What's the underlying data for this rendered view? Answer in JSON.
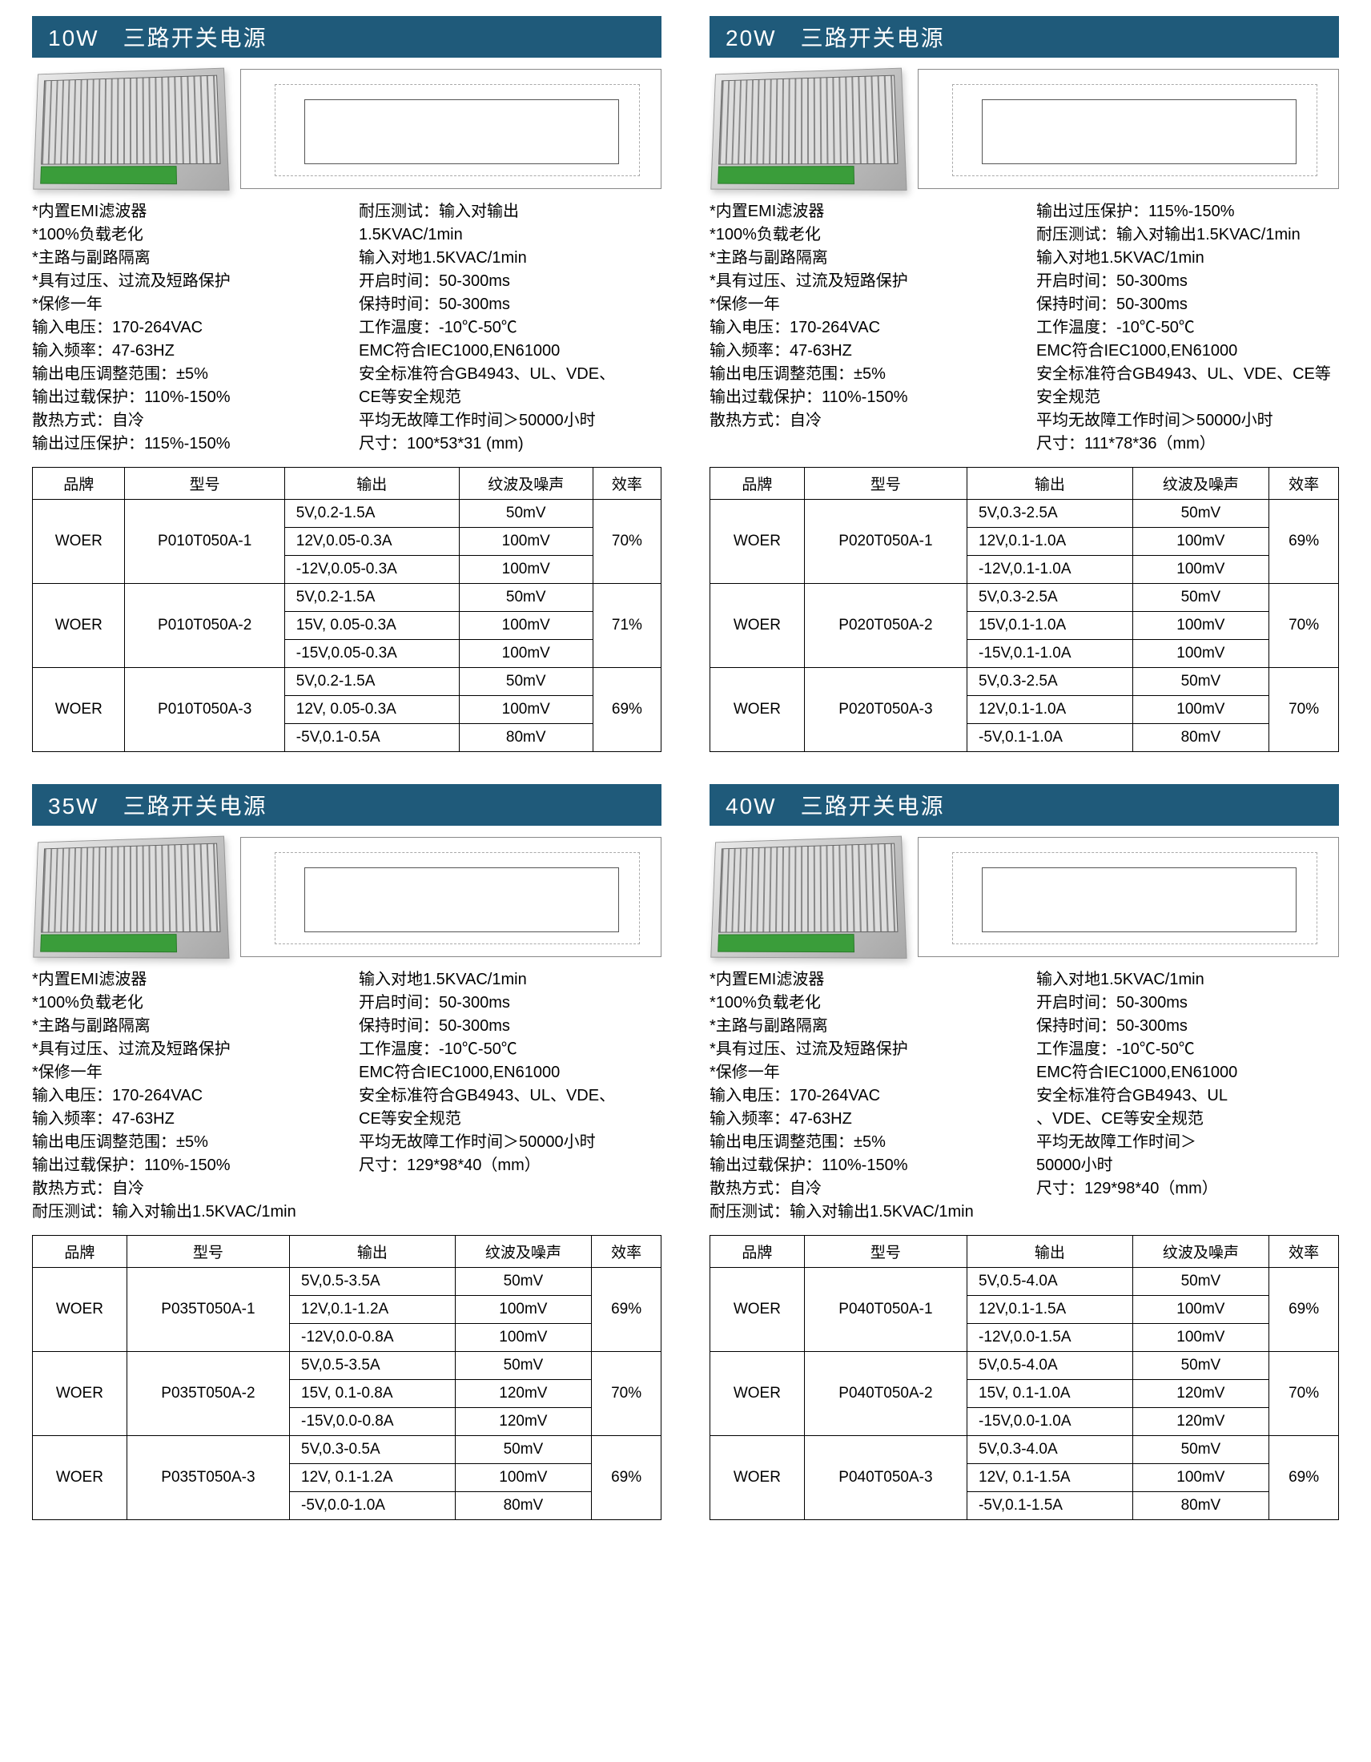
{
  "colors": {
    "titlebar_bg": "#1f5a7a",
    "titlebar_fg": "#ffffff",
    "border": "#000000"
  },
  "blocks": [
    {
      "title": "10W　三路开关电源",
      "specs_left": [
        "*内置EMI滤波器",
        "*100%负载老化",
        "*主路与副路隔离",
        "*具有过压、过流及短路保护",
        "*保修一年",
        "输入电压：170-264VAC",
        "输入频率：47-63HZ",
        "输出电压调整范围：±5%",
        "输出过载保护：110%-150%",
        "散热方式：自冷",
        "输出过压保护：115%-150%"
      ],
      "specs_right": [
        "耐压测试：输入对输出",
        "1.5KVAC/1min",
        "输入对地1.5KVAC/1min",
        "开启时间：50-300ms",
        "保持时间：50-300ms",
        "工作温度：-10℃-50℃",
        "EMC符合IEC1000,EN61000",
        "安全标准符合GB4943、UL、VDE、",
        "CE等安全规范",
        "平均无故障工作时间＞50000小时",
        "尺寸：100*53*31 (mm)"
      ],
      "table": {
        "headers": [
          "品牌",
          "型号",
          "输出",
          "纹波及噪声",
          "效率"
        ],
        "groups": [
          {
            "brand": "WOER",
            "model": "P010T050A-1",
            "eff": "70%",
            "rows": [
              {
                "out": "5V,0.2-1.5A",
                "rn": "50mV"
              },
              {
                "out": "12V,0.05-0.3A",
                "rn": "100mV"
              },
              {
                "out": "-12V,0.05-0.3A",
                "rn": "100mV"
              }
            ]
          },
          {
            "brand": "WOER",
            "model": "P010T050A-2",
            "eff": "71%",
            "rows": [
              {
                "out": "5V,0.2-1.5A",
                "rn": "50mV"
              },
              {
                "out": "15V, 0.05-0.3A",
                "rn": "100mV"
              },
              {
                "out": "-15V,0.05-0.3A",
                "rn": "100mV"
              }
            ]
          },
          {
            "brand": "WOER",
            "model": "P010T050A-3",
            "eff": "69%",
            "rows": [
              {
                "out": "5V,0.2-1.5A",
                "rn": "50mV"
              },
              {
                "out": "12V, 0.05-0.3A",
                "rn": "100mV"
              },
              {
                "out": "-5V,0.1-0.5A",
                "rn": "80mV"
              }
            ]
          }
        ]
      }
    },
    {
      "title": "20W　三路开关电源",
      "specs_left": [
        "*内置EMI滤波器",
        "*100%负载老化",
        "*主路与副路隔离",
        "*具有过压、过流及短路保护",
        "*保修一年",
        "输入电压：170-264VAC",
        "输入频率：47-63HZ",
        "输出电压调整范围：±5%",
        "输出过载保护：110%-150%",
        "散热方式：自冷"
      ],
      "specs_right": [
        "输出过压保护：115%-150%",
        "耐压测试：输入对输出1.5KVAC/1min",
        "输入对地1.5KVAC/1min",
        "开启时间：50-300ms",
        "保持时间：50-300ms",
        "工作温度：-10℃-50℃",
        "EMC符合IEC1000,EN61000",
        "安全标准符合GB4943、UL、VDE、CE等",
        "安全规范",
        "平均无故障工作时间＞50000小时",
        "尺寸：111*78*36（mm）"
      ],
      "table": {
        "headers": [
          "品牌",
          "型号",
          "输出",
          "纹波及噪声",
          "效率"
        ],
        "groups": [
          {
            "brand": "WOER",
            "model": "P020T050A-1",
            "eff": "69%",
            "rows": [
              {
                "out": "5V,0.3-2.5A",
                "rn": "50mV"
              },
              {
                "out": "12V,0.1-1.0A",
                "rn": "100mV"
              },
              {
                "out": "-12V,0.1-1.0A",
                "rn": "100mV"
              }
            ]
          },
          {
            "brand": "WOER",
            "model": "P020T050A-2",
            "eff": "70%",
            "rows": [
              {
                "out": "5V,0.3-2.5A",
                "rn": "50mV"
              },
              {
                "out": "15V,0.1-1.0A",
                "rn": "100mV"
              },
              {
                "out": "-15V,0.1-1.0A",
                "rn": "100mV"
              }
            ]
          },
          {
            "brand": "WOER",
            "model": "P020T050A-3",
            "eff": "70%",
            "rows": [
              {
                "out": "5V,0.3-2.5A",
                "rn": "50mV"
              },
              {
                "out": "12V,0.1-1.0A",
                "rn": "100mV"
              },
              {
                "out": "-5V,0.1-1.0A",
                "rn": "80mV"
              }
            ]
          }
        ]
      }
    },
    {
      "title": "35W　三路开关电源",
      "specs_left": [
        "*内置EMI滤波器",
        "*100%负载老化",
        "*主路与副路隔离",
        "*具有过压、过流及短路保护",
        "*保修一年",
        "输入电压：170-264VAC",
        "输入频率：47-63HZ",
        "输出电压调整范围：±5%",
        "输出过载保护：110%-150%",
        "散热方式：自冷",
        "耐压测试：输入对输出1.5KVAC/1min"
      ],
      "specs_right": [
        "输入对地1.5KVAC/1min",
        "开启时间：50-300ms",
        "保持时间：50-300ms",
        "工作温度：-10℃-50℃",
        "EMC符合IEC1000,EN61000",
        "安全标准符合GB4943、UL、VDE、",
        "CE等安全规范",
        "平均无故障工作时间＞50000小时",
        "尺寸：129*98*40（mm）"
      ],
      "table": {
        "headers": [
          "品牌",
          "型号",
          "输出",
          "纹波及噪声",
          "效率"
        ],
        "groups": [
          {
            "brand": "WOER",
            "model": "P035T050A-1",
            "eff": "69%",
            "rows": [
              {
                "out": "5V,0.5-3.5A",
                "rn": "50mV"
              },
              {
                "out": "12V,0.1-1.2A",
                "rn": "100mV"
              },
              {
                "out": "-12V,0.0-0.8A",
                "rn": "100mV"
              }
            ]
          },
          {
            "brand": "WOER",
            "model": "P035T050A-2",
            "eff": "70%",
            "rows": [
              {
                "out": "5V,0.5-3.5A",
                "rn": "50mV"
              },
              {
                "out": "15V, 0.1-0.8A",
                "rn": "120mV"
              },
              {
                "out": "-15V,0.0-0.8A",
                "rn": "120mV"
              }
            ]
          },
          {
            "brand": "WOER",
            "model": "P035T050A-3",
            "eff": "69%",
            "rows": [
              {
                "out": "5V,0.3-0.5A",
                "rn": "50mV"
              },
              {
                "out": "12V, 0.1-1.2A",
                "rn": "100mV"
              },
              {
                "out": "-5V,0.0-1.0A",
                "rn": "80mV"
              }
            ]
          }
        ]
      }
    },
    {
      "title": "40W　三路开关电源",
      "specs_left": [
        "*内置EMI滤波器",
        "*100%负载老化",
        "*主路与副路隔离",
        "*具有过压、过流及短路保护",
        "*保修一年",
        "输入电压：170-264VAC",
        "输入频率：47-63HZ",
        "输出电压调整范围：±5%",
        "输出过载保护：110%-150%",
        "散热方式：自冷",
        "耐压测试：输入对输出1.5KVAC/1min"
      ],
      "specs_right": [
        "输入对地1.5KVAC/1min",
        "开启时间：50-300ms",
        "保持时间：50-300ms",
        "工作温度：-10℃-50℃",
        "EMC符合IEC1000,EN61000",
        "安全标准符合GB4943、UL",
        "、VDE、CE等安全规范",
        "平均无故障工作时间＞",
        "50000小时",
        "尺寸：129*98*40（mm）"
      ],
      "table": {
        "headers": [
          "品牌",
          "型号",
          "输出",
          "纹波及噪声",
          "效率"
        ],
        "groups": [
          {
            "brand": "WOER",
            "model": "P040T050A-1",
            "eff": "69%",
            "rows": [
              {
                "out": "5V,0.5-4.0A",
                "rn": "50mV"
              },
              {
                "out": "12V,0.1-1.5A",
                "rn": "100mV"
              },
              {
                "out": "-12V,0.0-1.5A",
                "rn": "100mV"
              }
            ]
          },
          {
            "brand": "WOER",
            "model": "P040T050A-2",
            "eff": "70%",
            "rows": [
              {
                "out": "5V,0.5-4.0A",
                "rn": "50mV"
              },
              {
                "out": "15V, 0.1-1.0A",
                "rn": "120mV"
              },
              {
                "out": "-15V,0.0-1.0A",
                "rn": "120mV"
              }
            ]
          },
          {
            "brand": "WOER",
            "model": "P040T050A-3",
            "eff": "69%",
            "rows": [
              {
                "out": "5V,0.3-4.0A",
                "rn": "50mV"
              },
              {
                "out": "12V, 0.1-1.5A",
                "rn": "100mV"
              },
              {
                "out": "-5V,0.1-1.5A",
                "rn": "80mV"
              }
            ]
          }
        ]
      }
    }
  ]
}
